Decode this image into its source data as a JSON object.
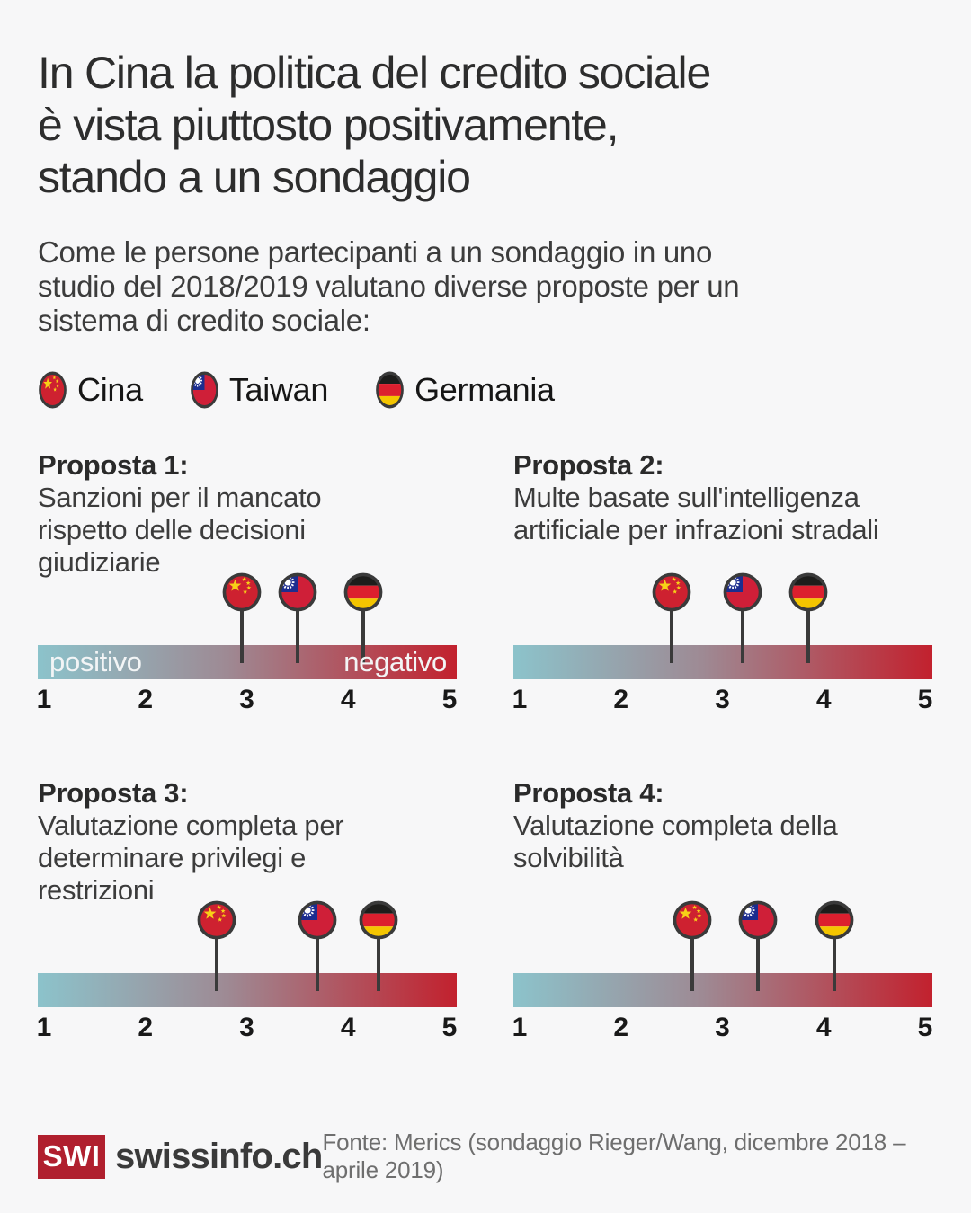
{
  "header": {
    "title": "In Cina la politica del credito sociale\nè vista piuttosto positivamente,\nstando a un sondaggio",
    "subtitle": "Come le persone partecipanti a un sondaggio in uno\nstudio del 2018/2019 valutano diverse proposte per un\nsistema di credito sociale:"
  },
  "chart_data": {
    "type": "scatter",
    "variant": "flag-pins-on-gradient-rating-scale",
    "scale": {
      "min": 1,
      "max": 5,
      "ticks": [
        "1",
        "2",
        "3",
        "4",
        "5"
      ],
      "left_label": "positivo",
      "right_label": "negativo",
      "gradient_start": "#8cc3cb",
      "gradient_mid": "#9e8a94",
      "gradient_end": "#c2212e"
    },
    "series": [
      {
        "id": "china",
        "name": "Cina"
      },
      {
        "id": "taiwan",
        "name": "Taiwan"
      },
      {
        "id": "germany",
        "name": "Germania"
      }
    ],
    "proposals": [
      {
        "title": "Proposta 1:",
        "description": "Sanzioni per il mancato\nrispetto delle decisioni\ngiudiziarie",
        "values": {
          "china": 2.95,
          "taiwan": 3.5,
          "germany": 4.15
        },
        "show_scale_labels": true
      },
      {
        "title": "Proposta 2:",
        "description": "Multe basate sull'intelligenza\nartificiale per infrazioni stradali",
        "values": {
          "china": 2.5,
          "taiwan": 3.2,
          "germany": 3.85
        },
        "show_scale_labels": false
      },
      {
        "title": "Proposta 3:",
        "description": "Valutazione completa per\ndeterminare privilegi e\nrestrizioni",
        "values": {
          "china": 2.7,
          "taiwan": 3.7,
          "germany": 4.3
        },
        "show_scale_labels": false
      },
      {
        "title": "Proposta 4:",
        "description": "Valutazione completa della\nsolvibilità",
        "values": {
          "china": 2.7,
          "taiwan": 3.35,
          "germany": 4.1
        },
        "show_scale_labels": false
      }
    ]
  },
  "flag_colors": {
    "ring": "#3a3a3a",
    "china": {
      "field": "#ce2130",
      "star": "#f7d117"
    },
    "taiwan": {
      "field": "#cf1f38",
      "canton": "#1c2d8f",
      "sun": "#ffffff"
    },
    "germany": {
      "black": "#1d1d1b",
      "red": "#dc1f2e",
      "gold": "#f4c500"
    }
  },
  "footer": {
    "logo_swi": "SWI",
    "logo_text": "swissinfo.ch",
    "source": "Fonte: Merics (sondaggio Rieger/Wang, dicembre 2018 – aprile 2019)"
  }
}
